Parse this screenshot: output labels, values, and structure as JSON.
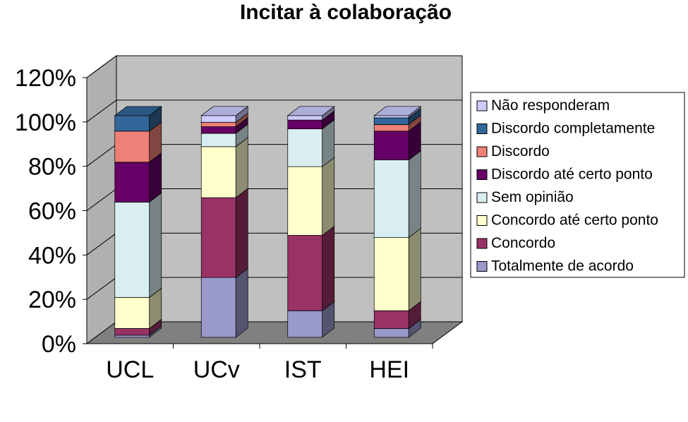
{
  "chart_data": {
    "type": "bar",
    "stacked": true,
    "three_d": true,
    "title": "Incitar à colaboração",
    "xlabel": "",
    "ylabel": "",
    "ylim": [
      0,
      120
    ],
    "y_ticks": [
      "0%",
      "20%",
      "40%",
      "60%",
      "80%",
      "100%",
      "120%"
    ],
    "grid": true,
    "legend_position": "right",
    "categories": [
      "UCL",
      "UCv",
      "IST",
      "HEI"
    ],
    "series": [
      {
        "name": "Totalmente de acordo",
        "color": "#9999cc",
        "values": [
          1,
          27,
          12,
          4
        ]
      },
      {
        "name": "Concordo",
        "color": "#993366",
        "values": [
          3,
          36,
          34,
          8
        ]
      },
      {
        "name": "Concordo até certo ponto",
        "color": "#ffffcc",
        "values": [
          14,
          23,
          31,
          33
        ]
      },
      {
        "name": "Sem opinião",
        "color": "#d9eef0",
        "values": [
          43,
          6,
          17,
          35
        ]
      },
      {
        "name": "Discordo até certo ponto",
        "color": "#660066",
        "values": [
          18,
          3,
          4,
          13
        ]
      },
      {
        "name": "Discordo",
        "color": "#ee8077",
        "values": [
          14,
          2,
          0,
          3
        ]
      },
      {
        "name": "Discordo completamente",
        "color": "#336699",
        "values": [
          7,
          0,
          0,
          3
        ]
      },
      {
        "name": "Não responderam",
        "color": "#ccccff",
        "values": [
          0,
          3,
          2,
          1
        ]
      }
    ],
    "wall_color": "#c0c0c0",
    "floor_color": "#808080"
  }
}
